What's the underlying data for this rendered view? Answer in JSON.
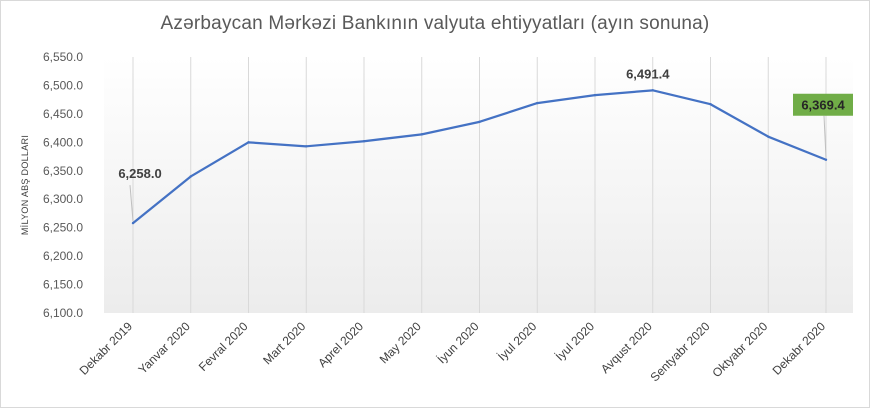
{
  "chart_data": {
    "type": "line",
    "title": "Azərbaycan Mərkəzi  Bankının valyuta ehtiyyatları (ayın sonuna)",
    "xlabel": "",
    "ylabel": "MİLYON ABŞ DOLLARI",
    "ylim": [
      6100,
      6550
    ],
    "y_tick_labels": [
      "6,100.0",
      "6,150.0",
      "6,200.0",
      "6,250.0",
      "6,300.0",
      "6,350.0",
      "6,400.0",
      "6,450.0",
      "6,500.0",
      "6,550.0"
    ],
    "categories": [
      "Dekabr  2019",
      "Yanvar  2020",
      "Fevral  2020",
      "Mart  2020",
      "Aprel  2020",
      "May  2020",
      "İyun  2020",
      "İyul  2020",
      "İyul  2020",
      "Avqust  2020",
      "Sentyabr  2020",
      "Oktyabr  2020",
      "Dekabr  2020"
    ],
    "series": [
      {
        "values": [
          6258.0,
          6340,
          6400,
          6393,
          6402,
          6414,
          6436,
          6469,
          6483,
          6491.4,
          6467,
          6410,
          6369.4
        ],
        "color": "#4472c4"
      }
    ],
    "data_labels": [
      {
        "index": 0,
        "text": "6,258.0"
      },
      {
        "index": 9,
        "text": "6,491.4"
      },
      {
        "index": 12,
        "text": "6,369.4",
        "highlight_color": "#70ad47"
      }
    ],
    "grid": "vertical",
    "plot_background": "gradient-white-to-light-gray"
  }
}
